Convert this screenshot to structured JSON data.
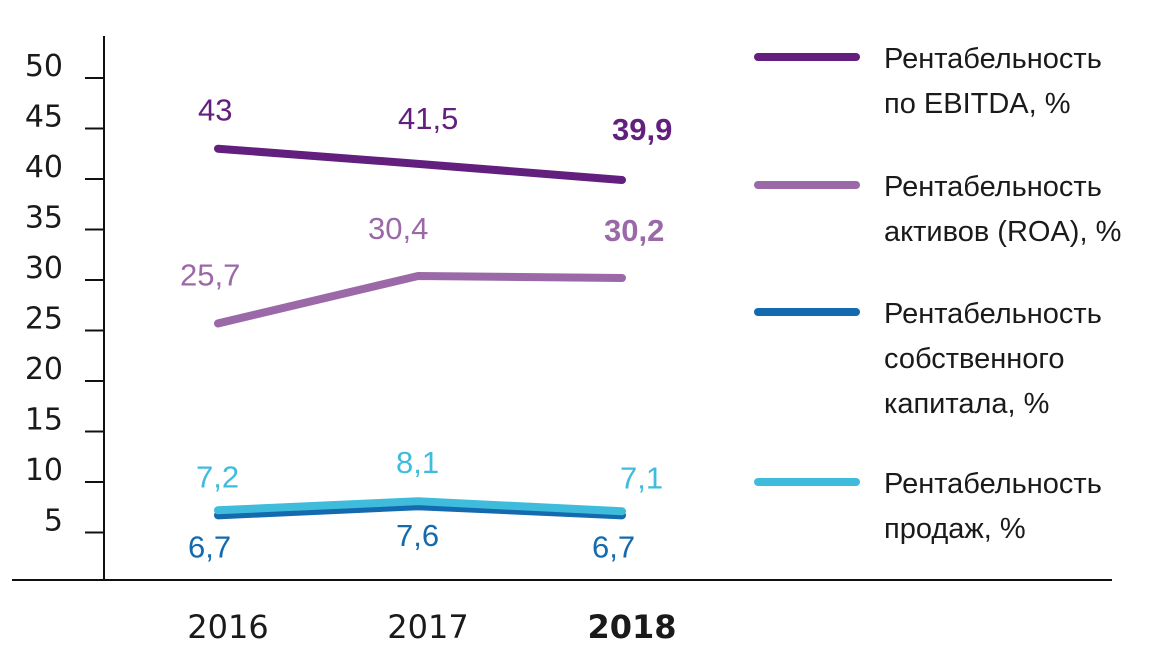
{
  "chart_data": {
    "type": "line",
    "title": "",
    "xlabel": "",
    "ylabel": "",
    "categories": [
      "2016",
      "2017",
      "2018"
    ],
    "highlighted_category": "2018",
    "ylim": [
      0,
      50
    ],
    "yticks": [
      5,
      10,
      15,
      20,
      25,
      30,
      35,
      40,
      45,
      50
    ],
    "grid": false,
    "legend_position": "right",
    "series": [
      {
        "name": "Рентабельность по EBITDA, %",
        "legend_lines": [
          "Рентабельность",
          "по EBITDA, %"
        ],
        "color": "#621f7e",
        "values": [
          43,
          41.5,
          39.9
        ],
        "labels": [
          "43",
          "41,5",
          "39,9"
        ],
        "label_position": "above"
      },
      {
        "name": "Рентабельность активов (ROA), %",
        "legend_lines": [
          "Рентабельность",
          "активов (ROA), %"
        ],
        "color": "#9b69a8",
        "values": [
          25.7,
          30.4,
          30.2
        ],
        "labels": [
          "25,7",
          "30,4",
          "30,2"
        ],
        "label_position": "above"
      },
      {
        "name": "Рентабельность собственного капитала, %",
        "legend_lines": [
          "Рентабельность",
          "собственного",
          "капитала, %"
        ],
        "color": "#136aae",
        "values": [
          6.7,
          7.6,
          6.7
        ],
        "labels": [
          "6,7",
          "7,6",
          "6,7"
        ],
        "label_position": "below"
      },
      {
        "name": "Рентабельность продаж, %",
        "legend_lines": [
          "Рентабельность",
          "продаж, %"
        ],
        "color": "#3fbcdc",
        "values": [
          7.2,
          8.1,
          7.1
        ],
        "labels": [
          "7,2",
          "8,1",
          "7,1"
        ],
        "label_position": "above"
      }
    ]
  }
}
